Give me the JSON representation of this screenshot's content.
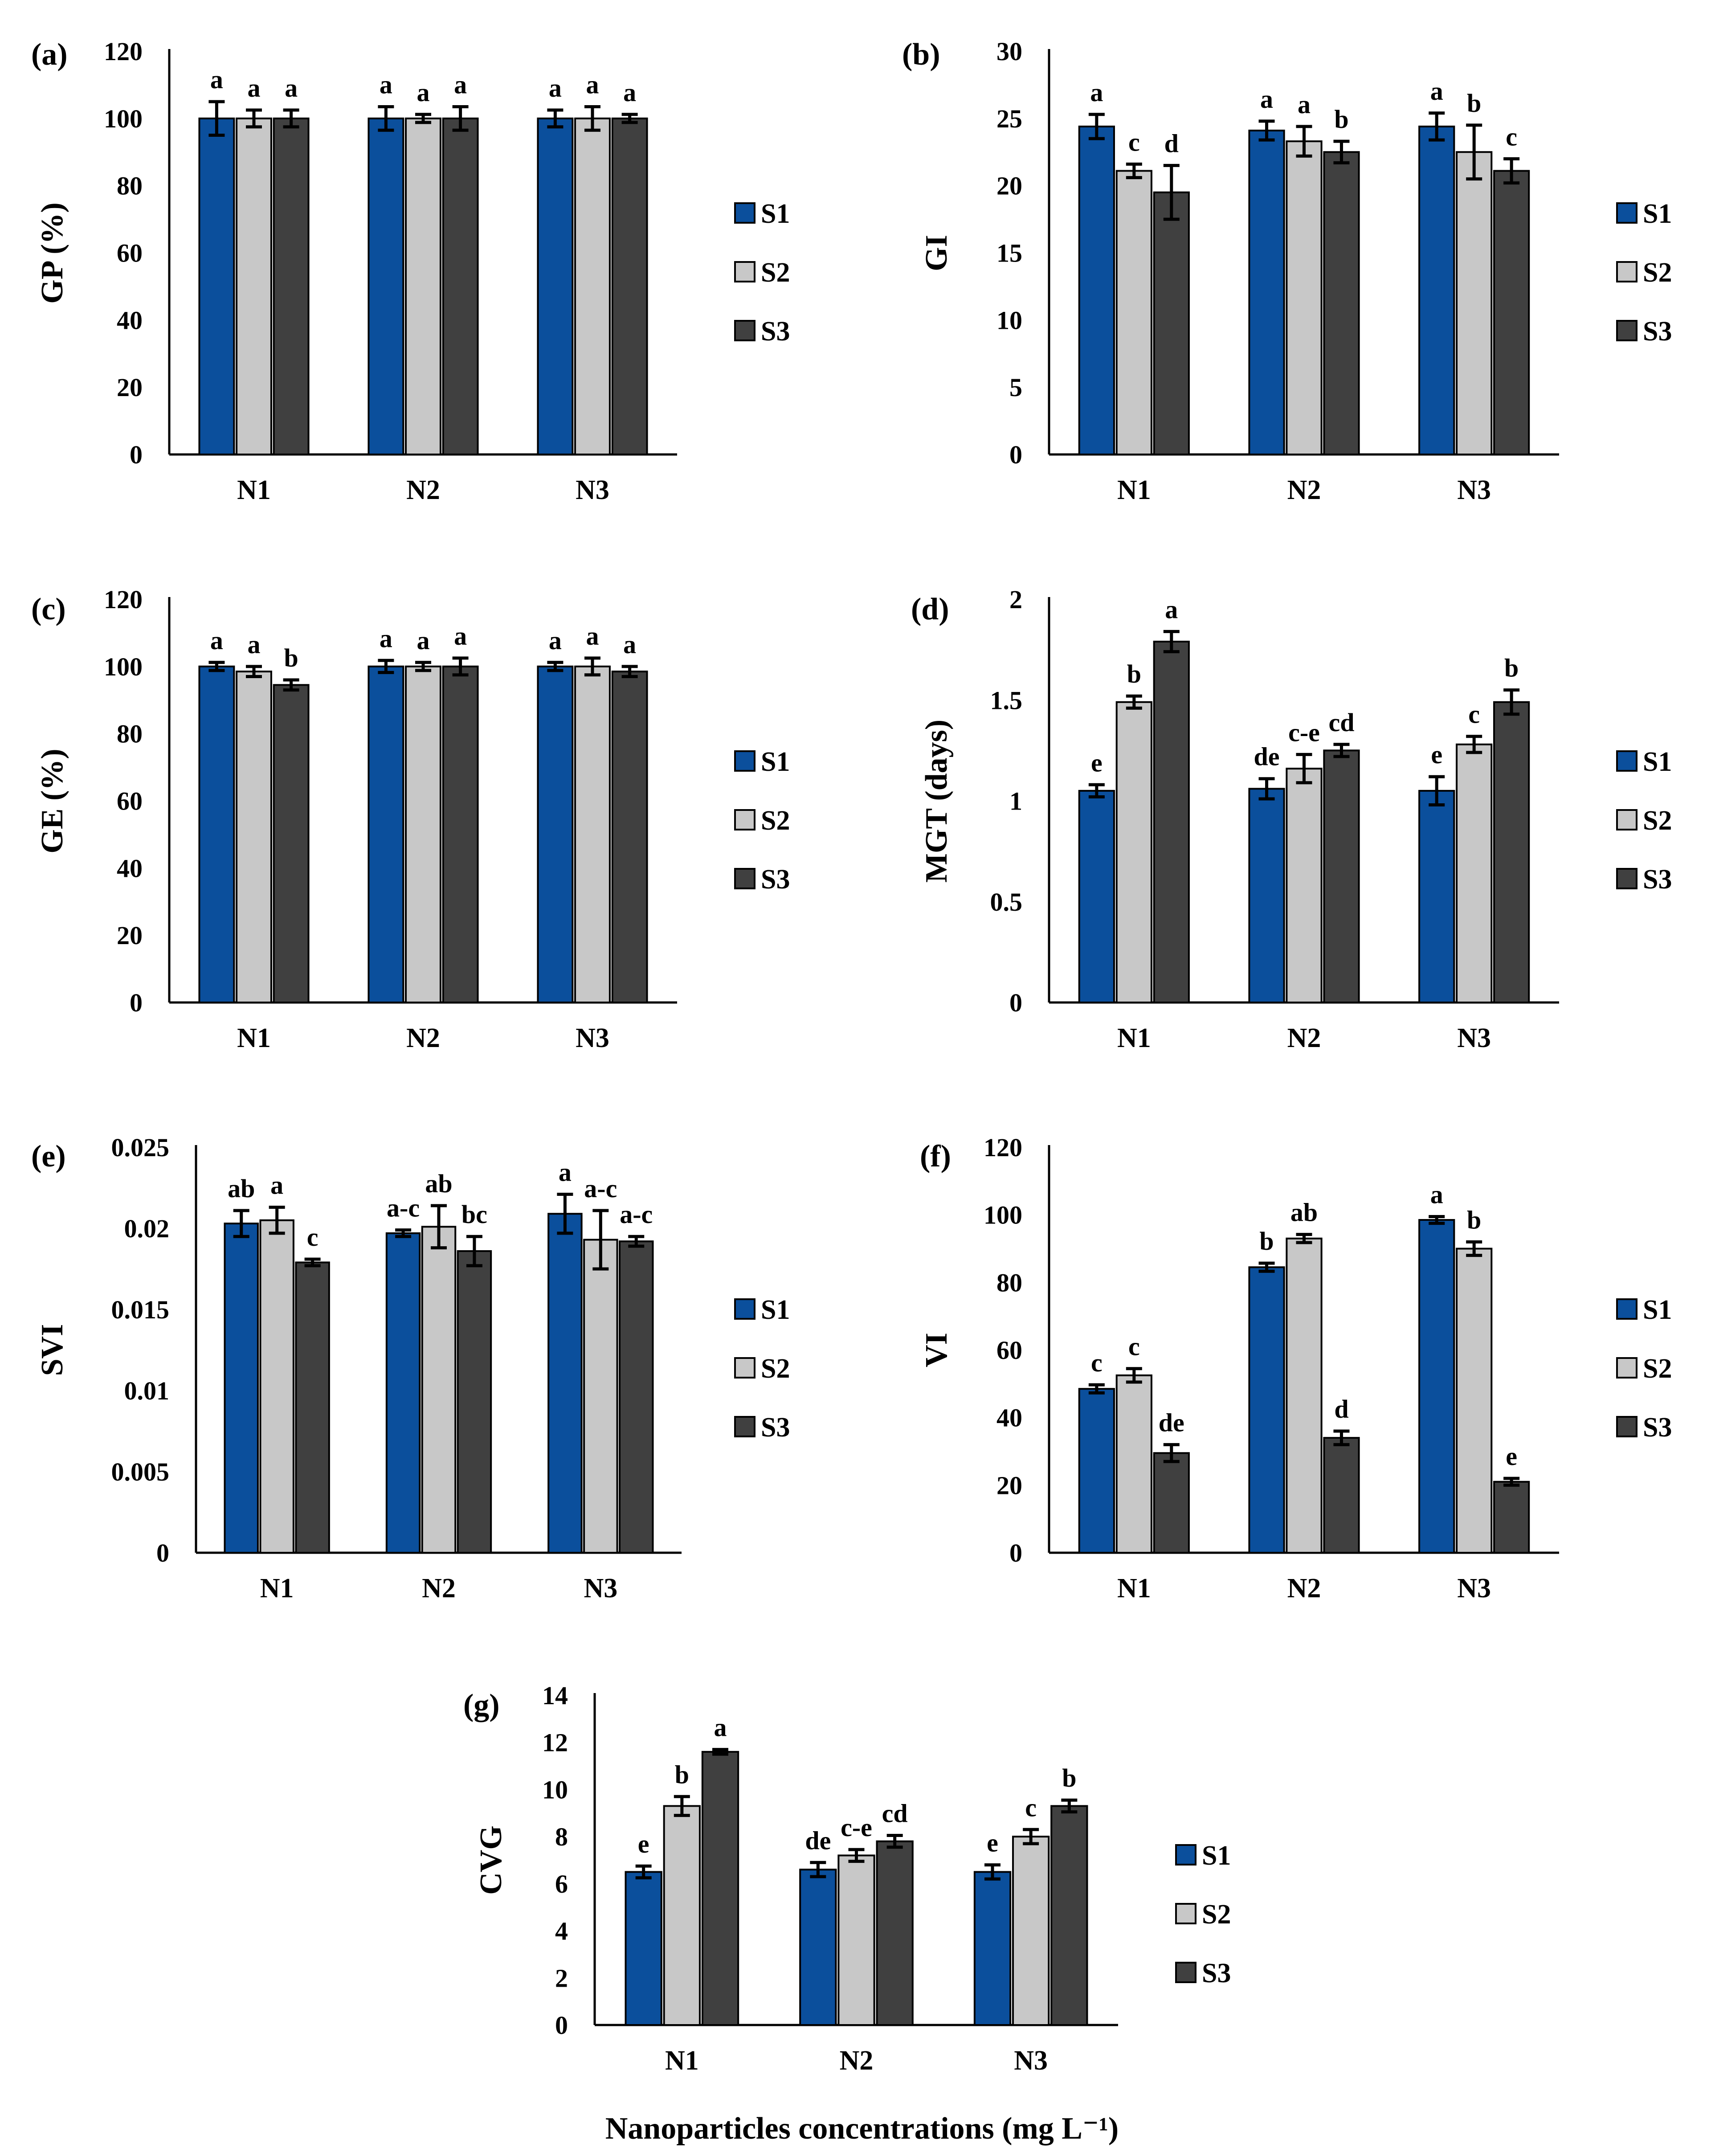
{
  "figure": {
    "xlabel": "Nanoparticles concentrations (mg L⁻¹)",
    "series_colors": {
      "S1": "#0b4f9c",
      "S2": "#c8c8c8",
      "S3": "#404040"
    }
  },
  "chart_data": [
    {
      "panel": "(a)",
      "type": "bar",
      "ylabel": "GP (%)",
      "categories": [
        "N1",
        "N2",
        "N3"
      ],
      "ylim": [
        0,
        120
      ],
      "yticks": [
        0,
        20,
        40,
        60,
        80,
        100,
        120
      ],
      "ytick_labels": [
        "0",
        "20",
        "40",
        "60",
        "80",
        "100",
        "120"
      ],
      "series": [
        {
          "name": "S1",
          "values": [
            100,
            100,
            100
          ],
          "errors": [
            5,
            3.5,
            2.5
          ],
          "letters": [
            "a",
            "a",
            "a"
          ]
        },
        {
          "name": "S2",
          "values": [
            100,
            100,
            100
          ],
          "errors": [
            2.5,
            1.2,
            3.5
          ],
          "letters": [
            "a",
            "a",
            "a"
          ]
        },
        {
          "name": "S3",
          "values": [
            100,
            100,
            100
          ],
          "errors": [
            2.5,
            3.5,
            1.2
          ],
          "letters": [
            "a",
            "a",
            "a"
          ]
        }
      ]
    },
    {
      "panel": "(b)",
      "type": "bar",
      "ylabel": "GI",
      "categories": [
        "N1",
        "N2",
        "N3"
      ],
      "ylim": [
        0,
        30
      ],
      "yticks": [
        0,
        5,
        10,
        15,
        20,
        25,
        30
      ],
      "ytick_labels": [
        "0",
        "5",
        "10",
        "15",
        "20",
        "25",
        "30"
      ],
      "series": [
        {
          "name": "S1",
          "values": [
            24.4,
            24.1,
            24.4
          ],
          "errors": [
            0.9,
            0.7,
            1.0
          ],
          "letters": [
            "a",
            "a",
            "a"
          ]
        },
        {
          "name": "S2",
          "values": [
            21.1,
            23.3,
            22.5
          ],
          "errors": [
            0.5,
            1.1,
            2.0
          ],
          "letters": [
            "c",
            "a",
            "b"
          ]
        },
        {
          "name": "S3",
          "values": [
            19.5,
            22.5,
            21.1
          ],
          "errors": [
            2.0,
            0.8,
            0.9
          ],
          "letters": [
            "d",
            "b",
            "c"
          ]
        }
      ]
    },
    {
      "panel": "(c)",
      "type": "bar",
      "ylabel": "GE (%)",
      "categories": [
        "N1",
        "N2",
        "N3"
      ],
      "ylim": [
        0,
        120
      ],
      "yticks": [
        0,
        20,
        40,
        60,
        80,
        100,
        120
      ],
      "ytick_labels": [
        "0",
        "20",
        "40",
        "60",
        "80",
        "100",
        "120"
      ],
      "series": [
        {
          "name": "S1",
          "values": [
            100,
            100,
            100
          ],
          "errors": [
            1.2,
            1.8,
            1.2
          ],
          "letters": [
            "a",
            "a",
            "a"
          ]
        },
        {
          "name": "S2",
          "values": [
            98.5,
            100,
            100
          ],
          "errors": [
            1.5,
            1.2,
            2.5
          ],
          "letters": [
            "a",
            "a",
            "a"
          ]
        },
        {
          "name": "S3",
          "values": [
            94.5,
            100,
            98.5
          ],
          "errors": [
            1.5,
            2.5,
            1.5
          ],
          "letters": [
            "b",
            "a",
            "a"
          ]
        }
      ]
    },
    {
      "panel": "(d)",
      "type": "bar",
      "ylabel": "MGT (days)",
      "categories": [
        "N1",
        "N2",
        "N3"
      ],
      "ylim": [
        0,
        2
      ],
      "yticks": [
        0,
        0.5,
        1,
        1.5,
        2
      ],
      "ytick_labels": [
        "0",
        "0.5",
        "1",
        "1.5",
        "2"
      ],
      "series": [
        {
          "name": "S1",
          "values": [
            1.05,
            1.06,
            1.05
          ],
          "errors": [
            0.03,
            0.05,
            0.07
          ],
          "letters": [
            "e",
            "de",
            "e"
          ]
        },
        {
          "name": "S2",
          "values": [
            1.49,
            1.16,
            1.28
          ],
          "errors": [
            0.03,
            0.07,
            0.04
          ],
          "letters": [
            "b",
            "c-e",
            "c"
          ]
        },
        {
          "name": "S3",
          "values": [
            1.79,
            1.25,
            1.49
          ],
          "errors": [
            0.05,
            0.03,
            0.06
          ],
          "letters": [
            "a",
            "cd",
            "b"
          ]
        }
      ]
    },
    {
      "panel": "(e)",
      "type": "bar",
      "ylabel": "SVI",
      "categories": [
        "N1",
        "N2",
        "N3"
      ],
      "ylim": [
        0,
        0.025
      ],
      "yticks": [
        0,
        0.005,
        0.01,
        0.015,
        0.02,
        0.025
      ],
      "ytick_labels": [
        "0",
        "0.005",
        "0.01",
        "0.015",
        "0.02",
        "0.025"
      ],
      "series": [
        {
          "name": "S1",
          "values": [
            0.0203,
            0.0197,
            0.0209
          ],
          "errors": [
            0.0008,
            0.0002,
            0.0012
          ],
          "letters": [
            "ab",
            "a-c",
            "a"
          ]
        },
        {
          "name": "S2",
          "values": [
            0.0205,
            0.0201,
            0.0193
          ],
          "errors": [
            0.0008,
            0.0013,
            0.0018
          ],
          "letters": [
            "a",
            "ab",
            "a-c"
          ]
        },
        {
          "name": "S3",
          "values": [
            0.0179,
            0.0186,
            0.0192
          ],
          "errors": [
            0.0002,
            0.0009,
            0.0003
          ],
          "letters": [
            "c",
            "bc",
            "a-c"
          ]
        }
      ]
    },
    {
      "panel": "(f)",
      "type": "bar",
      "ylabel": "VI",
      "categories": [
        "N1",
        "N2",
        "N3"
      ],
      "ylim": [
        0,
        120
      ],
      "yticks": [
        0,
        20,
        40,
        60,
        80,
        100,
        120
      ],
      "ytick_labels": [
        "0",
        "20",
        "40",
        "60",
        "80",
        "100",
        "120"
      ],
      "series": [
        {
          "name": "S1",
          "values": [
            48.5,
            84.5,
            98.5
          ],
          "errors": [
            1.2,
            1.2,
            1.0
          ],
          "letters": [
            "c",
            "b",
            "a"
          ]
        },
        {
          "name": "S2",
          "values": [
            52.5,
            93.0,
            90.0
          ],
          "errors": [
            2.0,
            1.2,
            2.0
          ],
          "letters": [
            "c",
            "ab",
            "b"
          ]
        },
        {
          "name": "S3",
          "values": [
            29.5,
            34.0,
            21.0
          ],
          "errors": [
            2.5,
            2.0,
            1.0
          ],
          "letters": [
            "de",
            "d",
            "e"
          ]
        }
      ]
    },
    {
      "panel": "(g)",
      "type": "bar",
      "ylabel": "CVG",
      "categories": [
        "N1",
        "N2",
        "N3"
      ],
      "ylim": [
        0,
        14
      ],
      "yticks": [
        0,
        2,
        4,
        6,
        8,
        10,
        12,
        14
      ],
      "ytick_labels": [
        "0",
        "2",
        "4",
        "6",
        "8",
        "10",
        "12",
        "14"
      ],
      "series": [
        {
          "name": "S1",
          "values": [
            6.5,
            6.6,
            6.5
          ],
          "errors": [
            0.25,
            0.3,
            0.3
          ],
          "letters": [
            "e",
            "de",
            "e"
          ]
        },
        {
          "name": "S2",
          "values": [
            9.3,
            7.2,
            8.0
          ],
          "errors": [
            0.4,
            0.25,
            0.3
          ],
          "letters": [
            "b",
            "c-e",
            "c"
          ]
        },
        {
          "name": "S3",
          "values": [
            11.6,
            7.8,
            9.3
          ],
          "errors": [
            0.1,
            0.25,
            0.25
          ],
          "letters": [
            "a",
            "cd",
            "b"
          ]
        }
      ]
    }
  ]
}
